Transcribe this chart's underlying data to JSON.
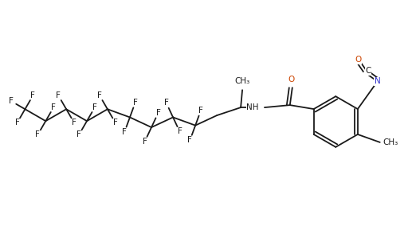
{
  "bg_color": "#ffffff",
  "line_color": "#1a1a1a",
  "O_color": "#cc4400",
  "N_color": "#3333cc",
  "F_color": "#1a1a1a",
  "figsize": [
    5.17,
    3.08
  ],
  "dpi": 100,
  "bond_lw": 1.3,
  "font_size": 7.5,
  "xlim": [
    0,
    5.17
  ],
  "ylim": [
    0,
    3.08
  ]
}
